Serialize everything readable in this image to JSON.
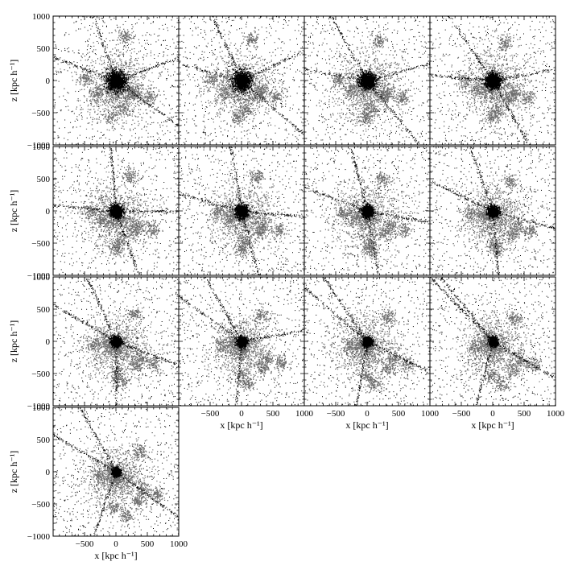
{
  "chart_data": {
    "type": "scatter",
    "layout": "13 scatter panels in a grid of 4 columns and 4 rows; the bottom row holds only the first panel",
    "xlabel": "x [kpc h⁻¹]",
    "ylabel": "z [kpc h⁻¹]",
    "xlim": [
      -1000,
      1000
    ],
    "ylim": [
      -1000,
      1000
    ],
    "xticks": [
      -500,
      0,
      500,
      1000
    ],
    "yticks": [
      -1000,
      -500,
      0,
      500,
      1000
    ],
    "point_colors": {
      "background": "#000000",
      "substructure": "#6e6e6e",
      "core": "#000000",
      "streams": "#000000"
    },
    "panels": [
      {
        "core_radius": 160,
        "filament_angles": [
          -35,
          20,
          110,
          160
        ],
        "clumps": [
          [
            -500,
            40
          ],
          [
            310,
            -160
          ],
          [
            230,
            -210
          ],
          [
            90,
            -430
          ],
          [
            -80,
            -550
          ],
          [
            530,
            -240
          ],
          [
            -300,
            -200
          ],
          [
            130,
            680
          ]
        ]
      },
      {
        "core_radius": 150,
        "filament_angles": [
          -40,
          25,
          115,
          165
        ],
        "clumps": [
          [
            -480,
            30
          ],
          [
            320,
            -170
          ],
          [
            240,
            -230
          ],
          [
            80,
            -440
          ],
          [
            -60,
            -560
          ],
          [
            540,
            -250
          ],
          [
            -280,
            -180
          ],
          [
            150,
            650
          ]
        ]
      },
      {
        "core_radius": 130,
        "filament_angles": [
          -50,
          15,
          120,
          170
        ],
        "clumps": [
          [
            -460,
            20
          ],
          [
            330,
            -180
          ],
          [
            250,
            -250
          ],
          [
            70,
            -450
          ],
          [
            -40,
            -570
          ],
          [
            550,
            -260
          ],
          [
            -260,
            -160
          ],
          [
            170,
            620
          ]
        ]
      },
      {
        "core_radius": 120,
        "filament_angles": [
          -60,
          10,
          125,
          175
        ],
        "clumps": [
          [
            -440,
            10
          ],
          [
            340,
            -190
          ],
          [
            260,
            -270
          ],
          [
            60,
            -460
          ],
          [
            -20,
            -580
          ],
          [
            560,
            -270
          ],
          [
            -240,
            -140
          ],
          [
            190,
            590
          ]
        ]
      },
      {
        "core_radius": 100,
        "filament_angles": [
          -70,
          0,
          95,
          175
        ],
        "clumps": [
          [
            -420,
            0
          ],
          [
            350,
            -200
          ],
          [
            270,
            -290
          ],
          [
            50,
            -470
          ],
          [
            0,
            -590
          ],
          [
            570,
            -280
          ],
          [
            -220,
            -120
          ],
          [
            210,
            560
          ]
        ]
      },
      {
        "core_radius": 95,
        "filament_angles": [
          -75,
          -5,
          100,
          165
        ],
        "clumps": [
          [
            -400,
            -10
          ],
          [
            360,
            -210
          ],
          [
            280,
            -310
          ],
          [
            40,
            -480
          ],
          [
            20,
            -600
          ],
          [
            580,
            -290
          ],
          [
            -200,
            -100
          ],
          [
            230,
            530
          ]
        ]
      },
      {
        "core_radius": 90,
        "filament_angles": [
          -80,
          -10,
          105,
          160
        ],
        "clumps": [
          [
            -380,
            -20
          ],
          [
            370,
            -220
          ],
          [
            290,
            -330
          ],
          [
            30,
            -490
          ],
          [
            40,
            -610
          ],
          [
            590,
            -300
          ],
          [
            -180,
            -80
          ],
          [
            250,
            500
          ]
        ]
      },
      {
        "core_radius": 85,
        "filament_angles": [
          -85,
          -15,
          110,
          155
        ],
        "clumps": [
          [
            -360,
            -30
          ],
          [
            380,
            -230
          ],
          [
            300,
            -350
          ],
          [
            20,
            -500
          ],
          [
            60,
            -620
          ],
          [
            600,
            -310
          ],
          [
            -160,
            -60
          ],
          [
            270,
            470
          ]
        ]
      },
      {
        "core_radius": 80,
        "filament_angles": [
          -90,
          -20,
          115,
          150
        ],
        "clumps": [
          [
            -340,
            -40
          ],
          [
            390,
            -240
          ],
          [
            310,
            -370
          ],
          [
            10,
            -510
          ],
          [
            80,
            -630
          ],
          [
            610,
            -320
          ],
          [
            -140,
            -40
          ],
          [
            290,
            440
          ]
        ]
      },
      {
        "core_radius": 75,
        "filament_angles": [
          -95,
          10,
          120,
          145
        ],
        "clumps": [
          [
            -320,
            -50
          ],
          [
            400,
            -250
          ],
          [
            320,
            -390
          ],
          [
            0,
            -520
          ],
          [
            100,
            -640
          ],
          [
            620,
            -330
          ],
          [
            -120,
            -20
          ],
          [
            310,
            410
          ]
        ]
      },
      {
        "core_radius": 70,
        "filament_angles": [
          -100,
          -25,
          125,
          140
        ],
        "clumps": [
          [
            -300,
            -60
          ],
          [
            410,
            -260
          ],
          [
            330,
            -410
          ],
          [
            -10,
            -530
          ],
          [
            120,
            -650
          ],
          [
            630,
            -340
          ],
          [
            -100,
            0
          ],
          [
            330,
            380
          ]
        ]
      },
      {
        "core_radius": 65,
        "filament_angles": [
          -105,
          -30,
          130,
          135
        ],
        "clumps": [
          [
            -280,
            -70
          ],
          [
            420,
            -270
          ],
          [
            340,
            -430
          ],
          [
            -20,
            -540
          ],
          [
            140,
            -660
          ],
          [
            640,
            -350
          ],
          [
            -80,
            20
          ],
          [
            350,
            350
          ]
        ]
      },
      {
        "core_radius": 60,
        "filament_angles": [
          -110,
          -35,
          120,
          150
        ],
        "clumps": [
          [
            -260,
            -80
          ],
          [
            430,
            -280
          ],
          [
            350,
            -450
          ],
          [
            -30,
            -550
          ],
          [
            160,
            -670
          ],
          [
            650,
            -360
          ],
          [
            -60,
            40
          ],
          [
            370,
            320
          ]
        ]
      }
    ]
  }
}
